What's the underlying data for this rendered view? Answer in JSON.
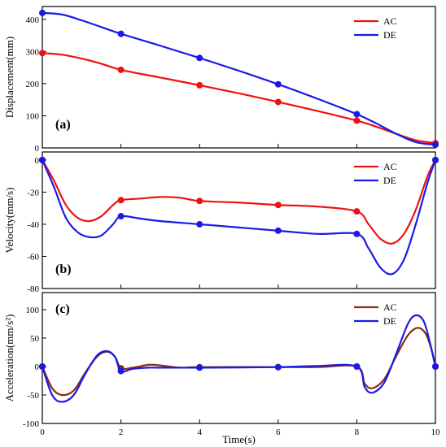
{
  "chart_data": {
    "type": "line",
    "xlabel": "Time(s)",
    "xlim": [
      0,
      10
    ],
    "xticks": [
      "0",
      "2",
      "4",
      "6",
      "8",
      "10"
    ],
    "panels": [
      {
        "tag": "(a)",
        "ylabel": "Displacement(mm)",
        "ylim": [
          0,
          440
        ],
        "yticks": [
          0,
          100,
          200,
          300,
          400
        ],
        "ytick_labels": [
          "0",
          "100",
          "200",
          "300",
          "400"
        ],
        "legend_position": "top-right",
        "series": [
          {
            "name": "AC",
            "color": "#ee1111",
            "x": [
              0,
              0.5,
              1,
              1.5,
              2,
              3,
              4,
              5,
              6,
              7,
              8,
              8.5,
              9,
              9.5,
              10
            ],
            "y": [
              295,
              290,
              278,
              262,
              243,
              219,
              195,
              170,
              143,
              115,
              85,
              66,
              44,
              24,
              15
            ],
            "markers_x": [
              0,
              2,
              4,
              6,
              8,
              10
            ],
            "markers_y": [
              295,
              243,
              195,
              143,
              85,
              15
            ]
          },
          {
            "name": "DE",
            "color": "#1a1ae6",
            "x": [
              0,
              0.5,
              1,
              1.5,
              2,
              3,
              4,
              5,
              6,
              7,
              8,
              8.5,
              9,
              9.5,
              10
            ],
            "y": [
              420,
              415,
              397,
              376,
              355,
              318,
              280,
              240,
              198,
              153,
              105,
              76,
              44,
              18,
              10
            ],
            "markers_x": [
              0,
              2,
              4,
              6,
              8,
              10
            ],
            "markers_y": [
              420,
              355,
              280,
              198,
              105,
              10
            ]
          }
        ]
      },
      {
        "tag": "(b)",
        "ylabel": "Velocity(mm/s)",
        "ylim": [
          -80,
          5
        ],
        "yticks": [
          0,
          -20,
          -40,
          -60,
          -80
        ],
        "ytick_labels": [
          "0",
          "-20",
          "-40",
          "-60",
          "-80"
        ],
        "legend_position": "top-right",
        "series": [
          {
            "name": "AC",
            "color": "#ee1111",
            "x": [
              0,
              0.3,
              0.6,
              0.9,
              1.2,
              1.5,
              1.8,
              2,
              2.5,
              3,
              3.5,
              4,
              5,
              6,
              7,
              8,
              8.3,
              8.6,
              8.9,
              9.2,
              9.5,
              9.8,
              10
            ],
            "y": [
              0,
              -13,
              -28,
              -36,
              -38,
              -35,
              -28,
              -25,
              -24,
              -23,
              -23.5,
              -25.5,
              -26.5,
              -28,
              -29,
              -32,
              -40,
              -49,
              -52,
              -46,
              -31,
              -10,
              0
            ],
            "markers_x": [
              0,
              2,
              4,
              6,
              8,
              10
            ],
            "markers_y": [
              0,
              -25,
              -25.5,
              -28,
              -32,
              0
            ]
          },
          {
            "name": "DE",
            "color": "#1a1ae6",
            "x": [
              0,
              0.3,
              0.6,
              0.9,
              1.2,
              1.5,
              1.8,
              2,
              2.5,
              3,
              4,
              5,
              6,
              7,
              8,
              8.3,
              8.6,
              8.9,
              9.2,
              9.5,
              9.8,
              10
            ],
            "y": [
              0,
              -17,
              -36,
              -45,
              -48,
              -47,
              -40,
              -35,
              -36.5,
              -38,
              -40,
              -42,
              -44,
              -46,
              -46,
              -55,
              -67,
              -71,
              -62,
              -40,
              -14,
              0
            ],
            "markers_x": [
              0,
              2,
              4,
              6,
              8,
              10
            ],
            "markers_y": [
              0,
              -35,
              -40,
              -44,
              -46,
              0
            ]
          }
        ]
      },
      {
        "tag": "(c)",
        "ylabel": "Acceleration(mm/s²)",
        "ylim": [
          -100,
          130
        ],
        "yticks": [
          100,
          50,
          0,
          -50,
          -100
        ],
        "ytick_labels": [
          "100",
          "50",
          "0",
          "-50",
          "-100"
        ],
        "legend_position": "top-right",
        "series": [
          {
            "name": "AC",
            "color": "#8b2e12",
            "x": [
              0,
              0.25,
              0.5,
              0.8,
              1.1,
              1.4,
              1.65,
              1.85,
              2,
              2.3,
              2.7,
              3,
              3.5,
              4,
              6,
              7,
              8,
              8.2,
              8.4,
              8.7,
              9,
              9.3,
              9.55,
              9.75,
              9.9,
              10
            ],
            "y": [
              0,
              -38,
              -50,
              -42,
              -10,
              18,
              26,
              17,
              -3,
              -2,
              3,
              2,
              -2,
              -1,
              -1,
              -1,
              0,
              -30,
              -38,
              -22,
              18,
              55,
              68,
              58,
              30,
              0
            ],
            "markers_x": [
              0,
              2,
              4,
              6,
              8,
              10
            ],
            "markers_y": [
              0,
              -3,
              -1,
              -1,
              0,
              0
            ]
          },
          {
            "name": "DE",
            "color": "#1a1ae6",
            "x": [
              0,
              0.25,
              0.5,
              0.8,
              1.1,
              1.4,
              1.65,
              1.85,
              2,
              2.3,
              2.7,
              3,
              3.5,
              4,
              6,
              7,
              8,
              8.2,
              8.4,
              8.7,
              9,
              9.3,
              9.5,
              9.7,
              9.85,
              10
            ],
            "y": [
              0,
              -50,
              -62,
              -50,
              -12,
              20,
              27,
              17,
              -8,
              -4,
              -2,
              -2,
              -2,
              -2,
              -1,
              1,
              0,
              -36,
              -46,
              -28,
              22,
              75,
              90,
              80,
              45,
              0
            ],
            "markers_x": [
              0,
              2,
              4,
              6,
              8,
              10
            ],
            "markers_y": [
              0,
              -8,
              -2,
              -1,
              0,
              0
            ]
          }
        ]
      }
    ]
  }
}
